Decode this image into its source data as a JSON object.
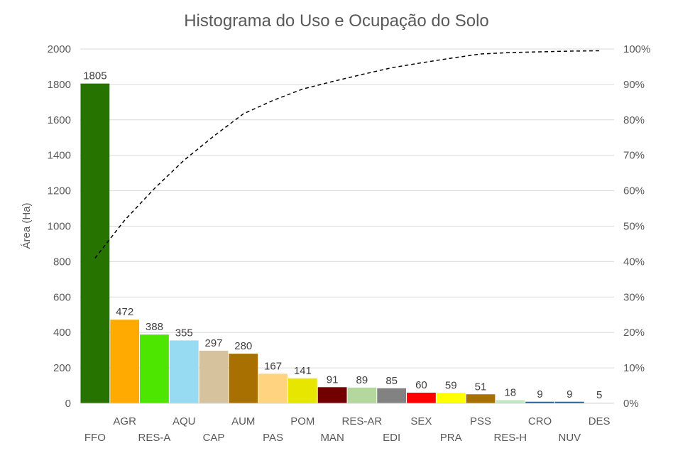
{
  "chart_data": {
    "type": "bar",
    "title": "Histograma do Uso e Ocupação do Solo",
    "ylabel": "Área (Ha)",
    "ylim": [
      0,
      2000
    ],
    "y_ticks": [
      "0",
      "200",
      "400",
      "600",
      "800",
      "1000",
      "1200",
      "1400",
      "1600",
      "1800",
      "2000"
    ],
    "y2lim": [
      0,
      100
    ],
    "y2_ticks": [
      "0%",
      "10%",
      "20%",
      "30%",
      "40%",
      "50%",
      "60%",
      "70%",
      "80%",
      "90%",
      "100%"
    ],
    "grid": true,
    "categories": [
      "FFO",
      "AGR",
      "RES-A",
      "AQU",
      "CAP",
      "AUM",
      "PAS",
      "POM",
      "MAN",
      "RES-AR",
      "EDI",
      "SEX",
      "PRA",
      "PSS",
      "RES-H",
      "CRO",
      "NUV",
      "DES"
    ],
    "values": [
      1805,
      472,
      388,
      355,
      297,
      280,
      167,
      141,
      91,
      89,
      85,
      60,
      59,
      51,
      18,
      9,
      9,
      5
    ],
    "value_labels": [
      "1805",
      "472",
      "388",
      "355",
      "297",
      "280",
      "167",
      "141",
      "91",
      "89",
      "85",
      "60",
      "59",
      "51",
      "18",
      "9",
      "9",
      "5"
    ],
    "colors": [
      "#267300",
      "#FFAA00",
      "#4CE600",
      "#97DBF2",
      "#D7C29E",
      "#A87000",
      "#FFD37F",
      "#E6E600",
      "#730000",
      "#B4D79E",
      "#828282",
      "#FF0000",
      "#FFFF00",
      "#A87000",
      "#BEE8BE",
      "#1F5B87",
      "#1F5B87",
      "#F0F0F0"
    ],
    "cumulative_series": {
      "style": "dashed",
      "color": "#000000",
      "axis": "secondary",
      "values_percent": [
        41.0,
        51.7,
        60.6,
        68.6,
        75.4,
        81.7,
        85.5,
        88.7,
        90.8,
        92.8,
        94.7,
        96.1,
        97.4,
        98.6,
        99.0,
        99.2,
        99.4,
        99.5
      ]
    }
  }
}
